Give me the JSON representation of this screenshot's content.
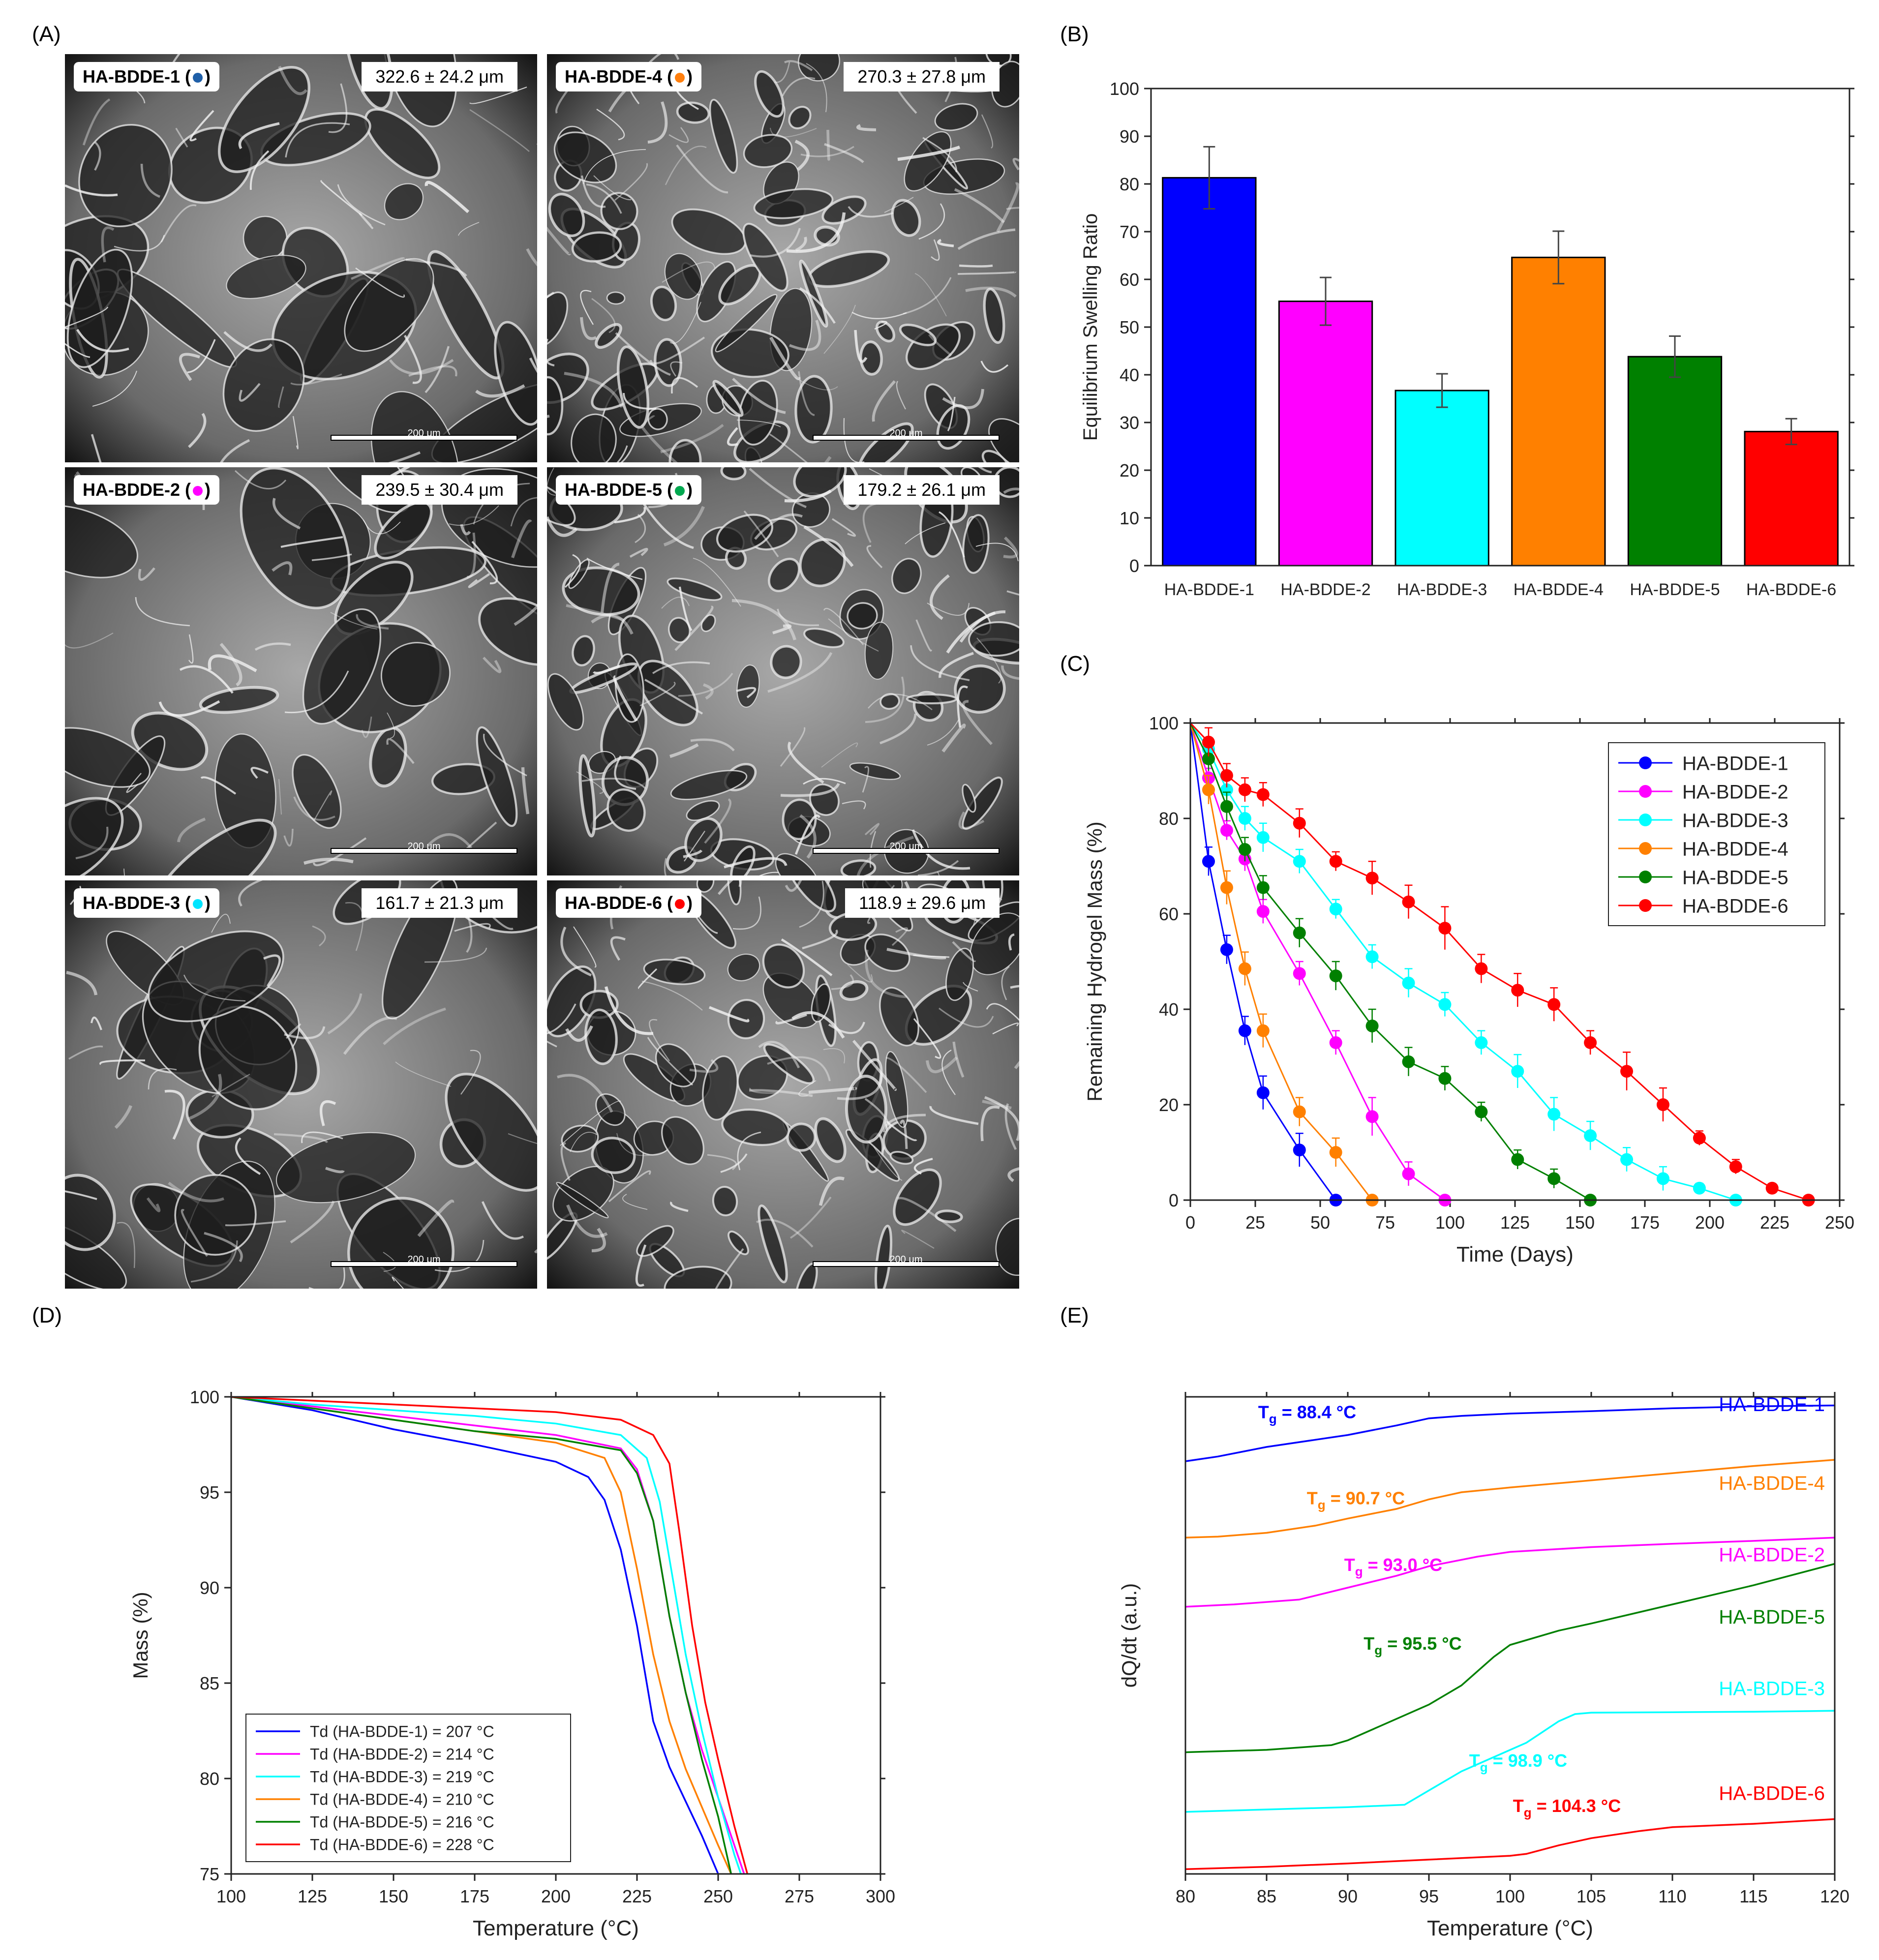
{
  "panel_labels": {
    "A": "(A)",
    "B": "(B)",
    "C": "(C)",
    "D": "(D)",
    "E": "(E)"
  },
  "sem": {
    "scale_text": "200 μm",
    "tiles": [
      {
        "name": "HA-BDDE-1",
        "label": "HA-BDDE-1 (",
        "label_end": ")",
        "size": "322.6 ± 24.2 μm",
        "color": "#1f5fa8"
      },
      {
        "name": "HA-BDDE-4",
        "label": "HA-BDDE-4 (",
        "label_end": ")",
        "size": "270.3 ± 27.8 μm",
        "color": "#ff7f0e"
      },
      {
        "name": "HA-BDDE-2",
        "label": "HA-BDDE-2 (",
        "label_end": ")",
        "size": "239.5 ± 30.4 μm",
        "color": "#ff00ff"
      },
      {
        "name": "HA-BDDE-5",
        "label": "HA-BDDE-5 (",
        "label_end": ")",
        "size": "179.2 ± 26.1 μm",
        "color": "#00a84f"
      },
      {
        "name": "HA-BDDE-3",
        "label": "HA-BDDE-3 (",
        "label_end": ")",
        "size": "161.7 ± 21.3 μm",
        "color": "#00e5ff"
      },
      {
        "name": "HA-BDDE-6",
        "label": "HA-BDDE-6 (",
        "label_end": ")",
        "size": "118.9 ± 29.6 μm",
        "color": "#ff0000"
      }
    ]
  },
  "chart_data": [
    {
      "id": "B",
      "type": "bar",
      "categories": [
        "HA-BDDE-1",
        "HA-BDDE-2",
        "HA-BDDE-3",
        "HA-BDDE-4",
        "HA-BDDE-5",
        "HA-BDDE-6"
      ],
      "values": [
        81.3,
        55.4,
        36.7,
        64.6,
        43.8,
        28.1
      ],
      "errors": [
        6.5,
        5.0,
        3.5,
        5.5,
        4.3,
        2.7
      ],
      "colors": [
        "#0000ff",
        "#ff00ff",
        "#00ffff",
        "#ff8000",
        "#008000",
        "#ff0000"
      ],
      "ylabel": "Equilibrium Swelling Ratio",
      "xlabel": "",
      "ylim": [
        0,
        100
      ],
      "yticks": [
        0,
        10,
        20,
        30,
        40,
        50,
        60,
        70,
        80,
        90,
        100
      ]
    },
    {
      "id": "C",
      "type": "line",
      "xlabel": "Time (Days)",
      "ylabel": "Remaining Hydrogel Mass (%)",
      "xlim": [
        0,
        250
      ],
      "ylim": [
        0,
        100
      ],
      "xticks": [
        0,
        25,
        50,
        75,
        100,
        125,
        150,
        175,
        200,
        225,
        250
      ],
      "yticks": [
        0,
        20,
        40,
        60,
        80,
        100
      ],
      "legend_position": "top-right",
      "series": [
        {
          "name": "HA-BDDE-1",
          "color": "#0000ff",
          "x": [
            0,
            7,
            14,
            21,
            28,
            42,
            56
          ],
          "y": [
            100,
            71,
            52.5,
            35.5,
            22.5,
            10.5,
            0
          ],
          "err": [
            0,
            3,
            3,
            3,
            3.5,
            3.5,
            0
          ]
        },
        {
          "name": "HA-BDDE-2",
          "color": "#ff00ff",
          "x": [
            0,
            7,
            14,
            21,
            28,
            42,
            56,
            70,
            84,
            98
          ],
          "y": [
            100,
            88.5,
            77.5,
            71.5,
            60.5,
            47.5,
            33,
            17.5,
            5.5,
            0
          ],
          "err": [
            0,
            2,
            2,
            2.5,
            2.5,
            2.5,
            2.5,
            4,
            2.5,
            0
          ]
        },
        {
          "name": "HA-BDDE-3",
          "color": "#00ffff",
          "x": [
            0,
            7,
            14,
            21,
            28,
            42,
            56,
            70,
            84,
            98,
            112,
            126,
            140,
            154,
            168,
            182,
            196,
            210
          ],
          "y": [
            100,
            94.5,
            86,
            80,
            76,
            71,
            61,
            51,
            45.5,
            41,
            33,
            27,
            18,
            13.5,
            8.5,
            4.5,
            2.5,
            0
          ],
          "err": [
            0,
            2,
            3,
            2.5,
            3,
            2.5,
            2,
            2.5,
            3,
            2.5,
            2.5,
            3.5,
            3.5,
            3,
            2.5,
            2.5,
            1,
            0
          ]
        },
        {
          "name": "HA-BDDE-4",
          "color": "#ff8000",
          "x": [
            0,
            7,
            14,
            21,
            28,
            42,
            56,
            70
          ],
          "y": [
            100,
            86,
            65.5,
            48.5,
            35.5,
            18.5,
            10,
            0
          ],
          "err": [
            0,
            3,
            3.5,
            3.5,
            3.5,
            3,
            3,
            0
          ]
        },
        {
          "name": "HA-BDDE-5",
          "color": "#008000",
          "x": [
            0,
            7,
            14,
            21,
            28,
            42,
            56,
            70,
            84,
            98,
            112,
            126,
            140,
            154
          ],
          "y": [
            100,
            92.5,
            82.5,
            73.5,
            65.5,
            56,
            47,
            36.5,
            29,
            25.5,
            18.5,
            8.5,
            4.5,
            0
          ],
          "err": [
            0,
            2.5,
            3,
            2.5,
            2.5,
            3,
            3,
            3.5,
            3,
            2.5,
            2,
            2,
            2,
            0
          ]
        },
        {
          "name": "HA-BDDE-6",
          "color": "#ff0000",
          "x": [
            0,
            7,
            14,
            21,
            28,
            42,
            56,
            70,
            84,
            98,
            112,
            126,
            140,
            154,
            168,
            182,
            196,
            210,
            224,
            238
          ],
          "y": [
            100,
            96,
            89,
            86,
            85,
            79,
            71,
            67.5,
            62.5,
            57,
            48.5,
            44,
            41,
            33,
            27,
            20,
            13,
            7,
            2.5,
            0
          ],
          "err": [
            0,
            3,
            2.5,
            2.5,
            2.5,
            3,
            2,
            3.5,
            3.5,
            4.5,
            3,
            3.5,
            3.5,
            2.5,
            4,
            3.5,
            1.5,
            1.5,
            0,
            0
          ]
        }
      ]
    },
    {
      "id": "D",
      "type": "line",
      "xlabel": "Temperature (°C)",
      "ylabel": "Mass (%)",
      "xlim": [
        100,
        300
      ],
      "ylim": [
        75,
        100
      ],
      "xticks": [
        100,
        125,
        150,
        175,
        200,
        225,
        250,
        275,
        300
      ],
      "yticks": [
        75,
        80,
        85,
        90,
        95,
        100
      ],
      "legend_position": "bottom-left",
      "series": [
        {
          "name": "Td (HA-BDDE-1) = 207 °C",
          "color": "#0000ff",
          "x": [
            100,
            125,
            150,
            175,
            200,
            210,
            215,
            220,
            225,
            230,
            235,
            240,
            245,
            250
          ],
          "y": [
            100,
            99.3,
            98.3,
            97.5,
            96.6,
            95.8,
            94.6,
            92.0,
            88.0,
            83.0,
            80.6,
            78.8,
            77.0,
            75.0
          ]
        },
        {
          "name": "Td (HA-BDDE-2) = 214 °C",
          "color": "#ff00ff",
          "x": [
            100,
            125,
            150,
            175,
            200,
            220,
            225,
            230,
            235,
            240,
            245,
            250,
            255,
            258
          ],
          "y": [
            100,
            99.5,
            99.0,
            98.5,
            98.0,
            97.3,
            96.2,
            93.5,
            88.5,
            84.5,
            81.5,
            79.0,
            76.5,
            75.0
          ]
        },
        {
          "name": "Td (HA-BDDE-3) = 219 °C",
          "color": "#00ffff",
          "x": [
            100,
            125,
            150,
            175,
            200,
            220,
            228,
            232,
            236,
            240,
            245,
            250,
            255,
            257
          ],
          "y": [
            100,
            99.6,
            99.3,
            99.0,
            98.6,
            98.0,
            96.8,
            94.5,
            90.5,
            86.5,
            82.5,
            79.0,
            76.0,
            75.0
          ]
        },
        {
          "name": "Td (HA-BDDE-4) = 210 °C",
          "color": "#ff8000",
          "x": [
            100,
            125,
            150,
            175,
            200,
            215,
            220,
            225,
            230,
            235,
            240,
            245,
            250,
            254
          ],
          "y": [
            100,
            99.4,
            98.8,
            98.2,
            97.6,
            96.8,
            95.0,
            91.0,
            86.5,
            83.0,
            80.5,
            78.5,
            76.5,
            75.0
          ]
        },
        {
          "name": "Td (HA-BDDE-5) = 216 °C",
          "color": "#008000",
          "x": [
            100,
            125,
            150,
            175,
            200,
            220,
            225,
            230,
            235,
            240,
            245,
            250,
            254
          ],
          "y": [
            100,
            99.4,
            98.8,
            98.2,
            97.8,
            97.2,
            96.0,
            93.5,
            88.5,
            84.5,
            81.0,
            78.0,
            75.0
          ]
        },
        {
          "name": "Td (HA-BDDE-6) = 228 °C",
          "color": "#ff0000",
          "x": [
            100,
            125,
            150,
            175,
            200,
            220,
            230,
            235,
            238,
            242,
            246,
            250,
            255,
            259
          ],
          "y": [
            100,
            99.8,
            99.6,
            99.4,
            99.2,
            98.8,
            98.0,
            96.5,
            93.0,
            88.0,
            84.0,
            81.0,
            77.5,
            75.0
          ]
        }
      ]
    },
    {
      "id": "E",
      "type": "line",
      "xlabel": "Temperature (°C)",
      "ylabel": "dQ/dt (a.u.)",
      "xlim": [
        80,
        120
      ],
      "xticks": [
        80,
        85,
        90,
        95,
        100,
        105,
        110,
        115,
        120
      ],
      "yrange_arbitrary": [
        0,
        100
      ],
      "series": [
        {
          "name": "HA-BDDE-1",
          "color": "#0000ff",
          "tg": "88.4 °C",
          "x": [
            80,
            82,
            85,
            88,
            90,
            93,
            95,
            97,
            100,
            105,
            110,
            115,
            120
          ],
          "y": [
            86.5,
            87.5,
            89.5,
            91.0,
            92.0,
            94.0,
            95.5,
            96.0,
            96.5,
            97.0,
            97.6,
            98.0,
            98.2
          ]
        },
        {
          "name": "HA-BDDE-4",
          "color": "#ff8000",
          "tg": "90.7 °C",
          "x": [
            80,
            82,
            85,
            88,
            90,
            93,
            95,
            97,
            100,
            105,
            110,
            115,
            120
          ],
          "y": [
            70.5,
            70.7,
            71.5,
            73.0,
            74.5,
            76.5,
            78.5,
            80.0,
            81.0,
            82.5,
            84.0,
            85.5,
            86.8
          ]
        },
        {
          "name": "HA-BDDE-2",
          "color": "#ff00ff",
          "tg": "93.0 °C",
          "x": [
            80,
            83,
            87,
            90,
            93,
            95,
            98,
            100,
            105,
            110,
            115,
            120
          ],
          "y": [
            56.0,
            56.5,
            57.5,
            60.0,
            62.5,
            64.5,
            66.5,
            67.5,
            68.5,
            69.2,
            69.8,
            70.5
          ]
        },
        {
          "name": "HA-BDDE-5",
          "color": "#008000",
          "tg": "95.5 °C",
          "x": [
            80,
            85,
            89,
            90,
            92,
            95,
            97,
            99,
            100,
            103,
            105,
            110,
            115,
            120
          ],
          "y": [
            25.5,
            26.0,
            27.0,
            28.0,
            31.0,
            35.5,
            39.5,
            45.5,
            48.0,
            51.0,
            52.5,
            56.5,
            60.5,
            65.0
          ]
        },
        {
          "name": "HA-BDDE-3",
          "color": "#00ffff",
          "tg": "98.9 °C",
          "x": [
            80,
            85,
            90,
            93.5,
            95,
            97,
            99,
            101,
            103,
            104,
            105,
            110,
            115,
            120
          ],
          "y": [
            13.0,
            13.5,
            14.0,
            14.5,
            17.5,
            21.5,
            24.5,
            27.5,
            32.0,
            33.5,
            33.8,
            33.9,
            34.0,
            34.2
          ]
        },
        {
          "name": "HA-BDDE-6",
          "color": "#ff0000",
          "tg": "104.3 °C",
          "x": [
            80,
            85,
            90,
            95,
            100,
            101,
            103,
            105,
            108,
            110,
            115,
            120
          ],
          "y": [
            1.0,
            1.5,
            2.2,
            3.0,
            3.8,
            4.2,
            6.0,
            7.5,
            9.0,
            9.8,
            10.5,
            11.5
          ]
        }
      ]
    }
  ]
}
